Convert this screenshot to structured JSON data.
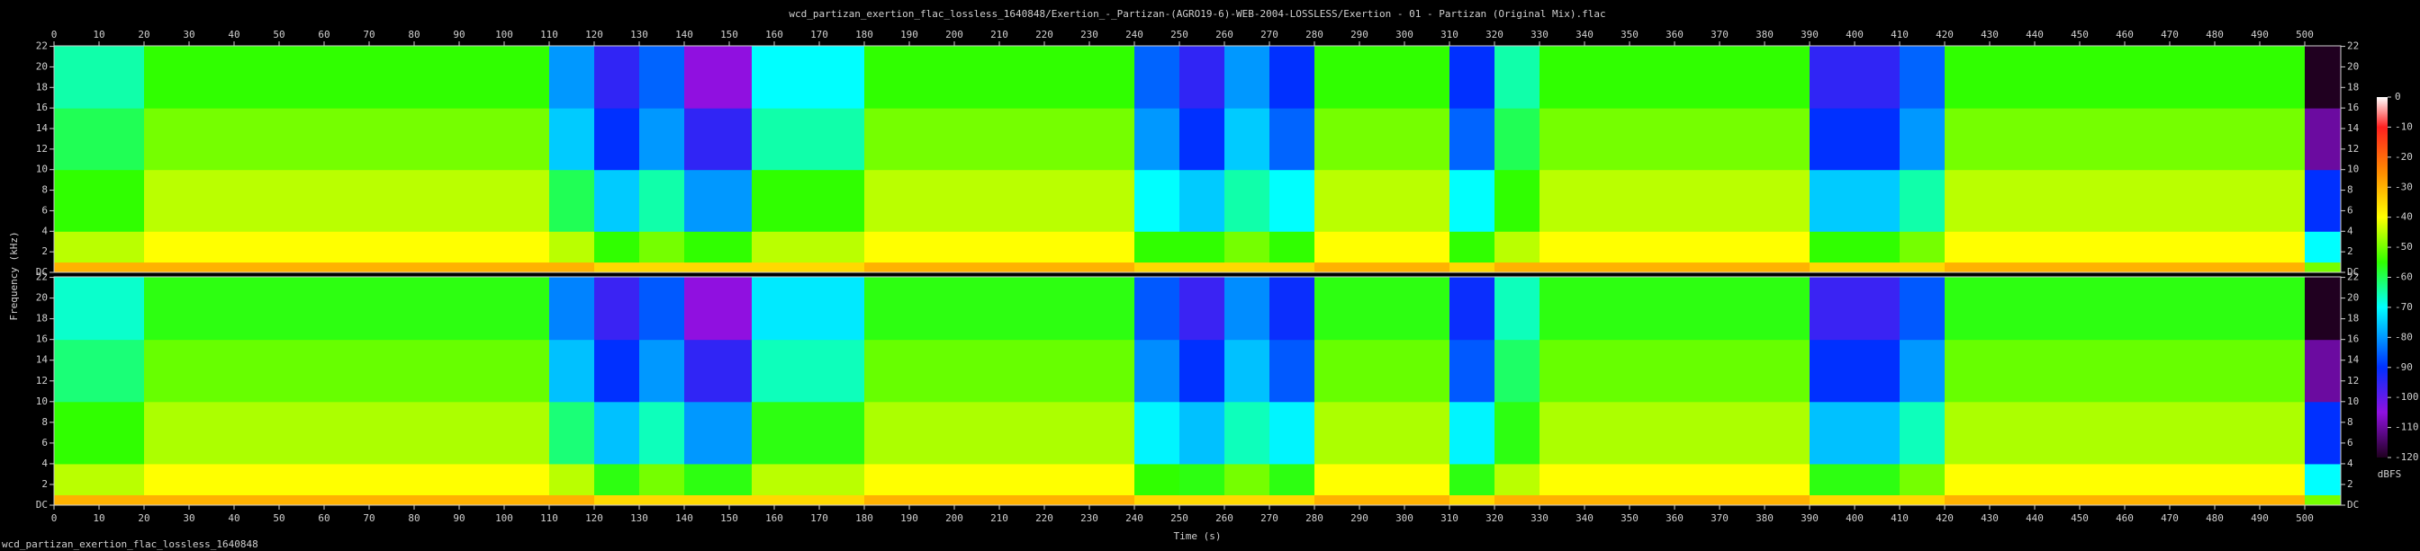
{
  "chart_data": {
    "type": "spectrogram",
    "title": "wcd_partizan_exertion_flac_lossless_1640848/Exertion_-_Partizan-(AGRO19-6)-WEB-2004-LOSSLESS/Exertion - 01 - Partizan (Original Mix).flac",
    "footer": "wcd_partizan_exertion_flac_lossless_1640848",
    "x_label": "Time (s)",
    "y_label": "Frequency (kHz)",
    "colorbar_label": "dBFS",
    "xlim": [
      0,
      508
    ],
    "xticks": [
      0,
      10,
      20,
      30,
      40,
      50,
      60,
      70,
      80,
      90,
      100,
      110,
      120,
      130,
      140,
      150,
      160,
      170,
      180,
      190,
      200,
      210,
      220,
      230,
      240,
      250,
      260,
      270,
      280,
      290,
      300,
      310,
      320,
      330,
      340,
      350,
      360,
      370,
      380,
      390,
      400,
      410,
      420,
      430,
      440,
      450,
      460,
      470,
      480,
      490,
      500
    ],
    "ylim": [
      0,
      22.05
    ],
    "yticks": [
      {
        "value": 0,
        "label": "DC"
      },
      2,
      4,
      6,
      8,
      10,
      12,
      14,
      16,
      18,
      20,
      22
    ],
    "clim": [
      -120,
      0
    ],
    "colorbar_ticks": [
      0,
      -10,
      -20,
      -30,
      -40,
      -50,
      -60,
      -70,
      -80,
      -90,
      -100,
      -110,
      -120
    ],
    "colormap": [
      {
        "value": 0,
        "color": "#ffffff"
      },
      {
        "value": -10,
        "color": "#ff2020"
      },
      {
        "value": -25,
        "color": "#ff8c00"
      },
      {
        "value": -40,
        "color": "#ffff00"
      },
      {
        "value": -55,
        "color": "#30ff00"
      },
      {
        "value": -70,
        "color": "#00ffff"
      },
      {
        "value": -90,
        "color": "#0030ff"
      },
      {
        "value": -105,
        "color": "#9010e0"
      },
      {
        "value": -120,
        "color": "#200020"
      }
    ],
    "time_bins": [
      0,
      20,
      110,
      120,
      130,
      140,
      155,
      180,
      240,
      250,
      260,
      270,
      280,
      310,
      320,
      330,
      390,
      410,
      420,
      500,
      508
    ],
    "freq_bins": [
      0,
      1,
      4,
      10,
      16,
      22.05
    ],
    "channels": [
      {
        "values": [
          [
            -30,
            -45,
            -55,
            -60,
            -65
          ],
          [
            -30,
            -40,
            -45,
            -50,
            -55
          ],
          [
            -30,
            -45,
            -60,
            -75,
            -80
          ],
          [
            -35,
            -55,
            -75,
            -90,
            -95
          ],
          [
            -35,
            -50,
            -65,
            -80,
            -85
          ],
          [
            -35,
            -55,
            -80,
            -95,
            -105
          ],
          [
            -35,
            -45,
            -55,
            -65,
            -70
          ],
          [
            -30,
            -40,
            -45,
            -50,
            -55
          ],
          [
            -35,
            -55,
            -70,
            -80,
            -85
          ],
          [
            -35,
            -55,
            -75,
            -90,
            -95
          ],
          [
            -35,
            -50,
            -65,
            -75,
            -80
          ],
          [
            -35,
            -55,
            -70,
            -85,
            -90
          ],
          [
            -30,
            -40,
            -45,
            -50,
            -55
          ],
          [
            -35,
            -55,
            -70,
            -85,
            -90
          ],
          [
            -30,
            -45,
            -55,
            -60,
            -65
          ],
          [
            -30,
            -40,
            -45,
            -50,
            -55
          ],
          [
            -35,
            -55,
            -75,
            -90,
            -95
          ],
          [
            -35,
            -50,
            -65,
            -80,
            -85
          ],
          [
            -30,
            -40,
            -45,
            -50,
            -55
          ],
          [
            -50,
            -70,
            -90,
            -110,
            -120
          ]
        ]
      },
      {
        "values": [
          [
            -30,
            -45,
            -55,
            -62,
            -67
          ],
          [
            -30,
            -40,
            -46,
            -51,
            -56
          ],
          [
            -30,
            -45,
            -62,
            -76,
            -82
          ],
          [
            -35,
            -56,
            -76,
            -90,
            -96
          ],
          [
            -35,
            -50,
            -66,
            -80,
            -86
          ],
          [
            -35,
            -56,
            -80,
            -95,
            -105
          ],
          [
            -35,
            -45,
            -56,
            -66,
            -72
          ],
          [
            -30,
            -40,
            -46,
            -51,
            -56
          ],
          [
            -35,
            -55,
            -71,
            -81,
            -86
          ],
          [
            -35,
            -56,
            -76,
            -90,
            -96
          ],
          [
            -35,
            -50,
            -66,
            -76,
            -81
          ],
          [
            -35,
            -56,
            -71,
            -86,
            -91
          ],
          [
            -30,
            -40,
            -46,
            -51,
            -56
          ],
          [
            -35,
            -56,
            -71,
            -86,
            -91
          ],
          [
            -30,
            -45,
            -56,
            -61,
            -66
          ],
          [
            -30,
            -40,
            -46,
            -51,
            -56
          ],
          [
            -35,
            -56,
            -76,
            -90,
            -96
          ],
          [
            -35,
            -50,
            -66,
            -80,
            -86
          ],
          [
            -30,
            -40,
            -46,
            -51,
            -56
          ],
          [
            -50,
            -70,
            -90,
            -110,
            -120
          ]
        ]
      }
    ]
  }
}
